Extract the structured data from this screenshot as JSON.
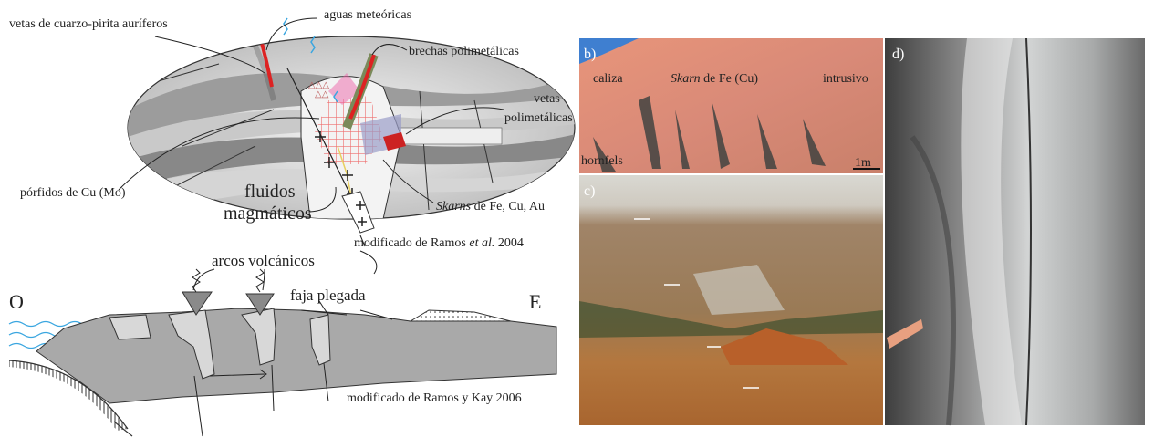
{
  "upper_diagram": {
    "labels": {
      "meteoric": "aguas meteóricas",
      "gold_veins": "vetas de cuarzo-pirita auríferos",
      "breccias": "brechas polimetálicas",
      "poly_veins": [
        "vetas",
        "polimetálicas"
      ],
      "porphyry": "pórfidos de Cu (Mo)",
      "fluids": [
        "fluidos",
        "magmáticos"
      ],
      "skarns": [
        "Skarns",
        " de Fe, Cu, Au"
      ]
    },
    "credit": [
      "modificado de Ramos ",
      "et al.",
      " 2004"
    ]
  },
  "lower_diagram": {
    "labels": {
      "arcs": "arcos volcánicos",
      "fold_belt": "faja plegada",
      "west": "O",
      "east": "E"
    },
    "credit": "modificado de Ramos y Kay 2006"
  },
  "photos": {
    "b": {
      "tag": "b)",
      "limestone": "caliza",
      "skarn": [
        "Skarn",
        " de Fe (Cu)"
      ],
      "intrusive": "intrusivo",
      "hornfels": "hornfels",
      "scale": "1m"
    },
    "c": {
      "tag": "c)"
    },
    "d": {
      "tag": "d)"
    }
  }
}
